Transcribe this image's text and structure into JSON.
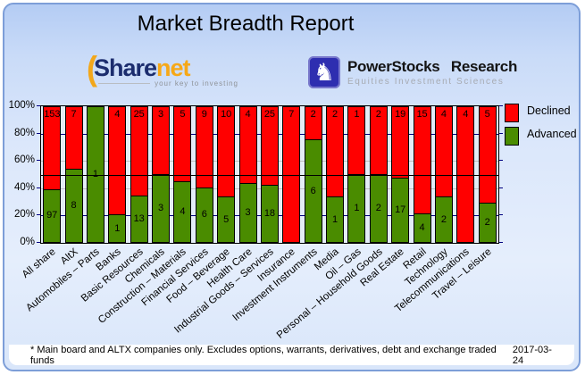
{
  "title": "Market Breadth Report",
  "logos": {
    "sharenet": {
      "word_primary": "Share",
      "word_secondary": "net",
      "tagline": "your key to investing"
    },
    "powerstocks": {
      "name": "PowerStocks Research",
      "subtitle": "Equities Investment Sciences",
      "icon": "knight-chess-icon"
    }
  },
  "chart_data": {
    "type": "bar",
    "stacked": true,
    "orientation": "vertical",
    "categories": [
      "All share",
      "AltX",
      "Automobiles – Parts",
      "Banks",
      "Basic Resources",
      "Chemicals",
      "Construction – Materials",
      "Financial Services",
      "Food – Beverage",
      "Health Care",
      "Industrial Goods – Services",
      "Insurance",
      "Investment Instruments",
      "Media",
      "Oil – Gas",
      "Personal – Household Goods",
      "Real Estate",
      "Retail",
      "Technology",
      "Telecommunications",
      "Travel – Leisure"
    ],
    "series": [
      {
        "name": "Advanced",
        "color": "#4a8c00",
        "values": [
          97,
          8,
          1,
          1,
          13,
          3,
          4,
          6,
          5,
          3,
          18,
          0,
          6,
          1,
          1,
          2,
          17,
          4,
          2,
          0,
          2
        ]
      },
      {
        "name": "Declined",
        "color": "#ff0000",
        "values": [
          153,
          7,
          0,
          4,
          25,
          3,
          5,
          9,
          10,
          4,
          25,
          7,
          2,
          2,
          1,
          2,
          19,
          15,
          4,
          4,
          5
        ]
      }
    ],
    "legend": [
      {
        "label": "Declined",
        "color": "#ff0000"
      },
      {
        "label": "Advanced",
        "color": "#4a8c00"
      }
    ],
    "legend_position": "top-right",
    "ylim": [
      0,
      100
    ],
    "y_ticks": [
      "100%",
      "80%",
      "60%",
      "40%",
      "20%",
      "0%"
    ],
    "y_tick_values": [
      100,
      80,
      60,
      40,
      20,
      0
    ],
    "gridlines": [
      {
        "pct": 80,
        "color": "#000080"
      },
      {
        "pct": 60,
        "color": "#c0c0c0"
      },
      {
        "pct": 40,
        "color": "#c0c0c0"
      },
      {
        "pct": 20,
        "color": "#000080"
      }
    ],
    "midline": {
      "pct": 50,
      "color": "#000000"
    },
    "plot_background": "#e4edf7"
  },
  "footer": {
    "note": "* Main board and ALTX companies only. Excludes options, warrants, derivatives, debt and exchange traded funds",
    "date": "2017-03-24"
  }
}
